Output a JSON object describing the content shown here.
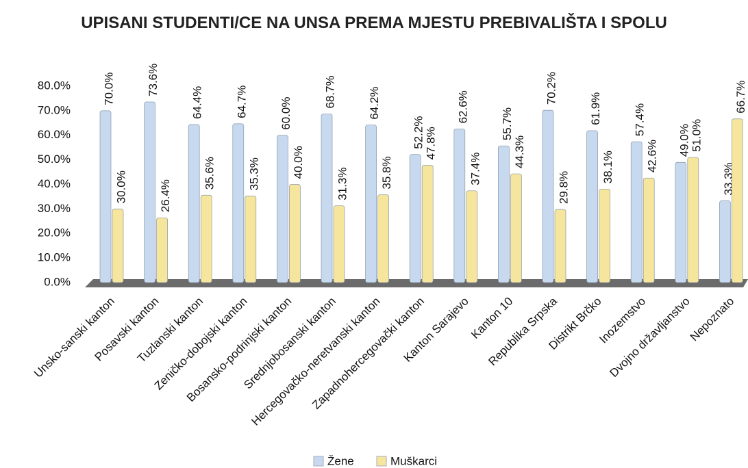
{
  "chart_data": {
    "type": "bar",
    "title": "UPISANI STUDENTI/CE NA UNSA PREMA MJESTU PREBIVALIŠTA I SPOLU",
    "categories": [
      "Unsko-sanski kanton",
      "Posavski kanton",
      "Tuzlanski kanton",
      "Zeničko-dobojski kanton",
      "Bosansko-podrinjski kanton",
      "Srednjobosanski kanton",
      "Hercegovačko-neretvanski kanton",
      "Zapadnohercegovački kanton",
      "Kanton Sarajevo",
      "Kanton 10",
      "Republika Srpska",
      "Distrikt Brčko",
      "Inozemstvo",
      "Dvojno državljanstvo",
      "Nepoznato"
    ],
    "series": [
      {
        "name": "Žene",
        "color": "#c6d9ef",
        "values": [
          70.0,
          73.6,
          64.4,
          64.7,
          60.0,
          68.7,
          64.2,
          52.2,
          62.6,
          55.7,
          70.2,
          61.9,
          57.4,
          49.0,
          33.3
        ],
        "value_labels": [
          "70.0%",
          "73.6%",
          "64.4%",
          "64.7%",
          "60.0%",
          "68.7%",
          "64.2%",
          "52.2%",
          "62.6%",
          "55.7%",
          "70.2%",
          "61.9%",
          "57.4%",
          "49.0%",
          "33.3%"
        ]
      },
      {
        "name": "Muškarci",
        "color": "#f6e59c",
        "values": [
          30.0,
          26.4,
          35.6,
          35.3,
          40.0,
          31.3,
          35.8,
          47.8,
          37.4,
          44.3,
          29.8,
          38.1,
          42.6,
          51.0,
          66.7
        ],
        "value_labels": [
          "30.0%",
          "26.4%",
          "35.6%",
          "35.3%",
          "40.0%",
          "31.3%",
          "35.8%",
          "47.8%",
          "37.4%",
          "44.3%",
          "29.8%",
          "38.1%",
          "42.6%",
          "51.0%",
          "66.7%"
        ]
      }
    ],
    "ylim": [
      0,
      80
    ],
    "yticks": [
      {
        "value": 0,
        "label": "0.0%"
      },
      {
        "value": 10,
        "label": "10.0%"
      },
      {
        "value": 20,
        "label": "20.0%"
      },
      {
        "value": 30,
        "label": "30.0%"
      },
      {
        "value": 40,
        "label": "40.0%"
      },
      {
        "value": 50,
        "label": "50.0%"
      },
      {
        "value": 60,
        "label": "60.0%"
      },
      {
        "value": 70,
        "label": "70.0%"
      },
      {
        "value": 80,
        "label": "80.0%"
      }
    ],
    "grid": false,
    "legend": "bottom"
  }
}
